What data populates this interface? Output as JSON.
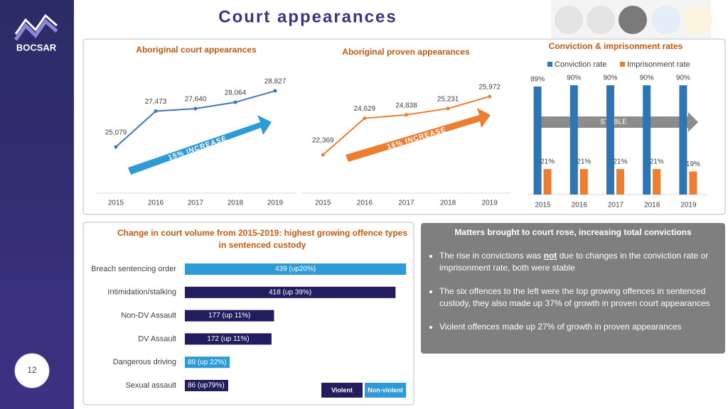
{
  "page": {
    "title": "Court appearances",
    "logo": "BOCSAR",
    "page_number": "12"
  },
  "chart_data": [
    {
      "type": "line",
      "title": "Aboriginal court appearances",
      "categories": [
        "2015",
        "2016",
        "2017",
        "2018",
        "2019"
      ],
      "values": [
        25079,
        27473,
        27640,
        28064,
        28827
      ],
      "value_labels": [
        "25,079",
        "27,473",
        "27,640",
        "28,064",
        "28,827"
      ],
      "color": "#4472c4",
      "ylim": [
        22000,
        30150
      ],
      "annotation": "15% INCREASE"
    },
    {
      "type": "line",
      "title": "Aboriginal proven appearances",
      "categories": [
        "2015",
        "2016",
        "2017",
        "2018",
        "2019"
      ],
      "values": [
        22369,
        24629,
        24838,
        25231,
        25972
      ],
      "value_labels": [
        "22,369",
        "24,629",
        "24,838",
        "25,231",
        "25,972"
      ],
      "color": "#ed7d31",
      "ylim": [
        20000,
        27550
      ],
      "annotation": "16% INCREASE"
    },
    {
      "type": "bar",
      "title": "Conviction & imprisonment rates",
      "categories": [
        "2015",
        "2016",
        "2017",
        "2018",
        "2019"
      ],
      "series": [
        {
          "name": "Conviction rate",
          "color": "#2e75b6",
          "values": [
            89,
            90,
            90,
            90,
            90
          ],
          "value_labels": [
            "89%",
            "90%",
            "90%",
            "90%",
            "90%"
          ]
        },
        {
          "name": "Imprisonment rate",
          "color": "#ed7d31",
          "values": [
            21,
            21,
            21,
            21,
            19
          ],
          "value_labels": [
            "21%",
            "21%",
            "21%",
            "21%",
            "19%"
          ]
        }
      ],
      "ylim": [
        0,
        100
      ],
      "annotation": "STABLE"
    },
    {
      "type": "hbar",
      "title": "Change in court volume from 2015-2019: highest growing offence types in sentenced custody",
      "categories": [
        "Breach sentencing order",
        "Intimidation/stalking",
        "Non-DV Assault",
        "DV Assault",
        "Dangerous driving",
        "Sexual assault"
      ],
      "values": [
        439,
        418,
        177,
        172,
        89,
        86
      ],
      "value_labels": [
        "439 (up20%)",
        "418 (up 39%)",
        "177 (up 11%)",
        "172 (up 11%)",
        "89 (up 22%)",
        "86 (up79%)"
      ],
      "colors": [
        "#2e9bd6",
        "#211d5e",
        "#211d5e",
        "#211d5e",
        "#2e9bd6",
        "#211d5e"
      ],
      "xlim": [
        0,
        450
      ],
      "legend": [
        {
          "name": "Violent",
          "color": "#211d5e"
        },
        {
          "name": "Non-violent",
          "color": "#2e9bd6"
        }
      ]
    }
  ],
  "panel": {
    "heading": "Matters brought to court rose, increasing total convictions",
    "bullets": [
      [
        {
          "text": "The rise in convictions was "
        },
        {
          "text": "not",
          "emphasis": true
        },
        {
          "text": " due to changes in the conviction rate or imprisonment rate, both were stable"
        }
      ],
      [
        {
          "text": "The six offences to the left were the top growing offences in sentenced custody, they also made up 37% of growth in proven court appearances"
        }
      ],
      [
        {
          "text": "Violent offences made up 27% of growth in proven appearances"
        }
      ]
    ]
  }
}
